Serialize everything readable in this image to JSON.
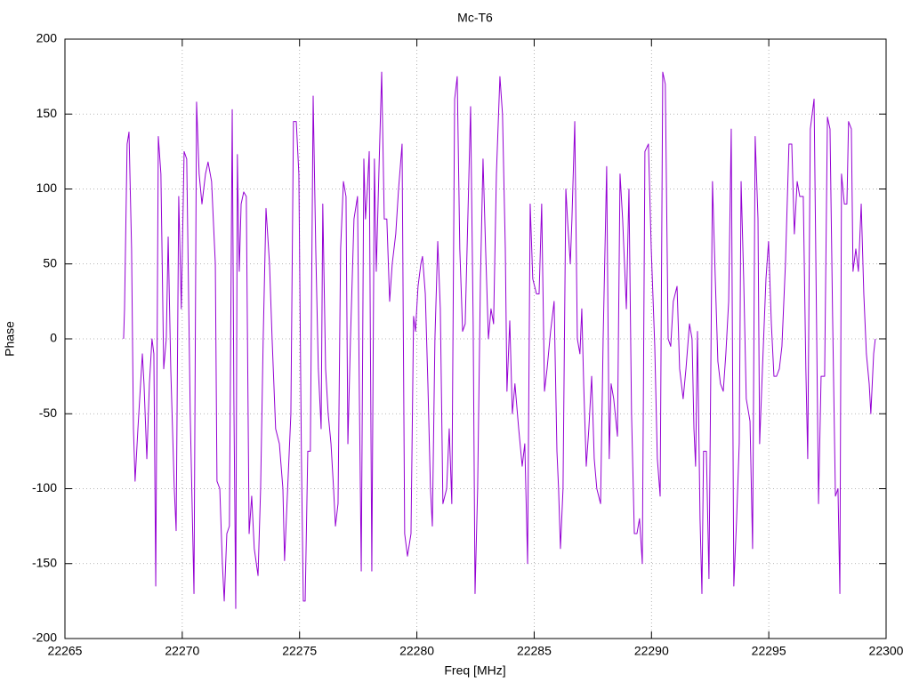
{
  "chart_data": {
    "type": "line",
    "title": "Mc-T6",
    "x_label": "Freq [MHz]",
    "y_label": "Phase",
    "xlim": [
      22265,
      22300
    ],
    "xticks": [
      22265,
      22270,
      22275,
      22280,
      22285,
      22290,
      22295,
      22300
    ],
    "ylim": [
      -200,
      200
    ],
    "yticks": [
      -200,
      -150,
      -100,
      -50,
      0,
      50,
      100,
      150,
      200
    ],
    "grid": true,
    "x": [
      22267.5,
      22267.54,
      22267.65,
      22267.73,
      22267.84,
      22267.92,
      22267.99,
      22268.11,
      22268.3,
      22268.37,
      22268.49,
      22268.6,
      22268.71,
      22268.79,
      22268.87,
      22268.98,
      22269.09,
      22269.21,
      22269.32,
      22269.4,
      22269.51,
      22269.66,
      22269.74,
      22269.85,
      22269.96,
      22270.08,
      22270.19,
      22270.34,
      22270.5,
      22270.61,
      22270.72,
      22270.84,
      22270.99,
      22271.1,
      22271.25,
      22271.41,
      22271.48,
      22271.6,
      22271.71,
      22271.79,
      22271.9,
      22272.01,
      22272.13,
      22272.2,
      22272.28,
      22272.35,
      22272.43,
      22272.51,
      22272.62,
      22272.73,
      22272.85,
      22272.96,
      22273.07,
      22273.23,
      22273.34,
      22273.45,
      22273.57,
      22273.72,
      22273.83,
      22273.98,
      22274.14,
      22274.29,
      22274.36,
      22274.52,
      22274.63,
      22274.74,
      22274.86,
      22274.97,
      22275.08,
      22275.16,
      22275.24,
      22275.35,
      22275.46,
      22275.58,
      22275.69,
      22275.8,
      22275.92,
      22275.99,
      22276.11,
      22276.22,
      22276.34,
      22276.45,
      22276.53,
      22276.64,
      22276.75,
      22276.87,
      22276.98,
      22277.06,
      22277.17,
      22277.32,
      22277.47,
      22277.55,
      22277.63,
      22277.74,
      22277.81,
      22277.89,
      22277.97,
      22278.08,
      22278.19,
      22278.27,
      22278.38,
      22278.5,
      22278.61,
      22278.72,
      22278.84,
      22278.95,
      22279.1,
      22279.22,
      22279.37,
      22279.48,
      22279.6,
      22279.75,
      22279.86,
      22279.94,
      22280.05,
      22280.17,
      22280.24,
      22280.36,
      22280.47,
      22280.58,
      22280.66,
      22280.77,
      22280.89,
      22281.0,
      22281.11,
      22281.27,
      22281.38,
      22281.49,
      22281.61,
      22281.72,
      22281.83,
      22281.95,
      22282.06,
      22282.18,
      22282.29,
      22282.4,
      22282.48,
      22282.59,
      22282.71,
      22282.82,
      22282.93,
      22283.05,
      22283.16,
      22283.27,
      22283.39,
      22283.54,
      22283.65,
      22283.77,
      22283.84,
      22283.96,
      22284.07,
      22284.18,
      22284.34,
      22284.49,
      22284.6,
      22284.72,
      22284.83,
      22284.94,
      22285.1,
      22285.21,
      22285.32,
      22285.44,
      22285.55,
      22285.7,
      22285.85,
      22285.97,
      22286.04,
      22286.12,
      22286.23,
      22286.35,
      22286.42,
      22286.54,
      22286.61,
      22286.73,
      22286.84,
      22286.95,
      22287.03,
      22287.11,
      22287.22,
      22287.33,
      22287.45,
      22287.56,
      22287.67,
      22287.83,
      22287.94,
      22288.09,
      22288.2,
      22288.28,
      22288.39,
      22288.55,
      22288.66,
      22288.77,
      22288.93,
      22289.04,
      22289.15,
      22289.27,
      22289.38,
      22289.49,
      22289.61,
      22289.72,
      22289.87,
      22289.99,
      22290.14,
      22290.25,
      22290.37,
      22290.48,
      22290.59,
      22290.71,
      22290.82,
      22290.93,
      22291.09,
      22291.2,
      22291.35,
      22291.47,
      22291.62,
      22291.73,
      22291.81,
      22291.88,
      22291.96,
      22292.07,
      22292.15,
      22292.22,
      22292.34,
      22292.45,
      22292.6,
      22292.72,
      22292.83,
      22292.94,
      22293.06,
      22293.17,
      22293.29,
      22293.4,
      22293.51,
      22293.63,
      22293.74,
      22293.82,
      22293.93,
      22294.04,
      22294.2,
      22294.31,
      22294.42,
      22294.54,
      22294.61,
      22294.73,
      22294.88,
      22294.99,
      22295.11,
      22295.22,
      22295.33,
      22295.45,
      22295.56,
      22295.71,
      22295.86,
      22295.98,
      22296.09,
      22296.21,
      22296.32,
      22296.47,
      22296.58,
      22296.66,
      22296.77,
      22296.93,
      22297.04,
      22297.12,
      22297.23,
      22297.38,
      22297.5,
      22297.61,
      22297.72,
      22297.84,
      22297.95,
      22298.03,
      22298.1,
      22298.22,
      22298.33,
      22298.4,
      22298.52,
      22298.59,
      22298.71,
      22298.82,
      22298.94,
      22299.05,
      22299.16,
      22299.28,
      22299.35,
      22299.47,
      22299.54
    ],
    "series": [
      {
        "color": "#9400d3",
        "values": [
          0,
          20,
          130,
          138,
          60,
          -60,
          -95,
          -60,
          -10,
          -30,
          -80,
          -30,
          0,
          -10,
          -165,
          135,
          110,
          -20,
          0,
          68,
          -20,
          -100,
          -128,
          95,
          20,
          125,
          120,
          -50,
          -170,
          158,
          110,
          90,
          110,
          118,
          105,
          50,
          -95,
          -100,
          -150,
          -175,
          -130,
          -125,
          153,
          -40,
          -180,
          123,
          45,
          90,
          98,
          95,
          -130,
          -105,
          -140,
          -158,
          -100,
          0,
          87,
          50,
          0,
          -60,
          -70,
          -100,
          -148,
          -90,
          -50,
          145,
          145,
          110,
          -80,
          -175,
          -175,
          -75,
          -75,
          162,
          60,
          -20,
          -60,
          90,
          -20,
          -50,
          -70,
          -100,
          -125,
          -110,
          60,
          105,
          95,
          -70,
          0,
          80,
          95,
          -40,
          -155,
          120,
          80,
          100,
          125,
          -155,
          120,
          45,
          110,
          178,
          80,
          80,
          25,
          50,
          70,
          100,
          130,
          -130,
          -145,
          -130,
          15,
          5,
          35,
          50,
          55,
          30,
          -30,
          -100,
          -125,
          0,
          65,
          20,
          -110,
          -100,
          -60,
          -110,
          160,
          175,
          60,
          5,
          10,
          85,
          155,
          10,
          -170,
          -100,
          40,
          120,
          60,
          0,
          20,
          10,
          110,
          175,
          150,
          60,
          -35,
          12,
          -50,
          -30,
          -60,
          -85,
          -70,
          -150,
          90,
          40,
          30,
          30,
          90,
          -35,
          -20,
          5,
          25,
          -75,
          -100,
          -140,
          -100,
          100,
          80,
          50,
          80,
          145,
          0,
          -10,
          20,
          -30,
          -85,
          -60,
          -25,
          -80,
          -100,
          -110,
          0,
          115,
          -80,
          -30,
          -40,
          -65,
          110,
          80,
          20,
          100,
          -50,
          -130,
          -130,
          -120,
          -150,
          125,
          130,
          60,
          -5,
          -80,
          -105,
          178,
          170,
          0,
          -5,
          25,
          35,
          -20,
          -40,
          -20,
          10,
          0,
          -60,
          -85,
          5,
          -120,
          -170,
          -75,
          -75,
          -160,
          105,
          40,
          -15,
          -30,
          -35,
          -10,
          25,
          140,
          -165,
          -120,
          -70,
          105,
          40,
          -40,
          -55,
          -140,
          135,
          80,
          -70,
          -20,
          40,
          65,
          10,
          -25,
          -25,
          -20,
          -5,
          50,
          130,
          130,
          70,
          105,
          95,
          95,
          -20,
          -80,
          140,
          160,
          5,
          -110,
          -25,
          -25,
          148,
          140,
          15,
          -105,
          -100,
          -170,
          110,
          90,
          90,
          145,
          140,
          45,
          60,
          45,
          90,
          30,
          -10,
          -30,
          -50,
          -10,
          0
        ]
      }
    ]
  }
}
